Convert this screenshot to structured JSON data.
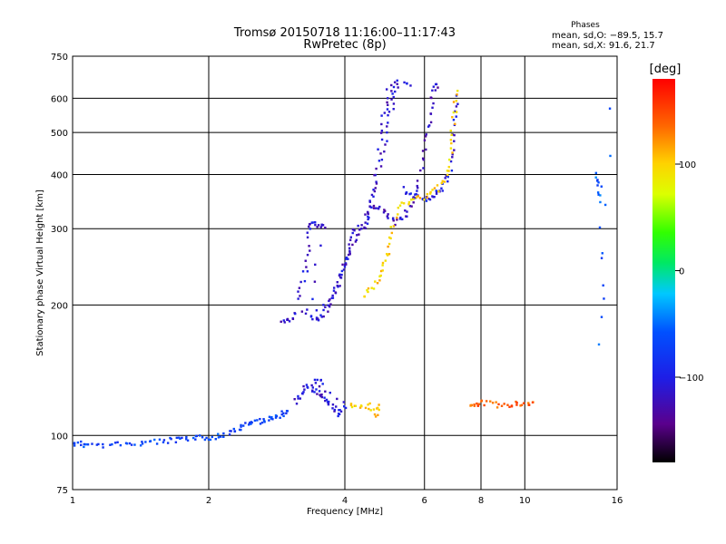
{
  "chart_data": {
    "type": "scatter",
    "title": "Tromsø 20150718 11:16:00–11:17:43",
    "subtitle": "RwPretec (8p)",
    "xlabel": "Frequency [MHz]",
    "ylabel": "Stationary phase Virtual Height [km]",
    "x_scale": "log",
    "y_scale": "log",
    "xlim": [
      1,
      16
    ],
    "ylim": [
      75,
      750
    ],
    "x_ticks": [
      1,
      2,
      4,
      6,
      8,
      10,
      16
    ],
    "x_tick_labels": [
      "1",
      "2",
      "4",
      "6",
      "8",
      "10",
      "16"
    ],
    "y_ticks": [
      75,
      100,
      200,
      300,
      400,
      500,
      600,
      750
    ],
    "y_tick_labels": [
      "75",
      "100",
      "200",
      "300",
      "400",
      "500",
      "600",
      "750"
    ],
    "grid": true,
    "phase_panel": {
      "title": "Phases",
      "line_o": "mean, sd,O: −89.5, 15.7",
      "line_x": "mean, sd,X:  91.6, 21.7"
    },
    "colorbar": {
      "label": "[deg]",
      "range": [
        -180,
        180
      ],
      "ticks": [
        100,
        0,
        -100
      ],
      "tick_labels": [
        "100",
        "0",
        "−100"
      ]
    },
    "traces": [
      {
        "phase": -70,
        "points": [
          [
            1.0,
            96
          ],
          [
            1.05,
            95.5
          ],
          [
            1.1,
            95
          ],
          [
            1.2,
            95
          ],
          [
            1.3,
            95.5
          ],
          [
            1.4,
            96
          ],
          [
            1.5,
            96.5
          ],
          [
            1.6,
            97
          ],
          [
            1.7,
            97.5
          ],
          [
            1.8,
            98
          ],
          [
            1.9,
            98.5
          ],
          [
            2.0,
            99
          ],
          [
            2.1,
            99.5
          ],
          [
            2.2,
            101
          ],
          [
            2.3,
            103
          ],
          [
            2.4,
            105
          ],
          [
            2.5,
            107
          ],
          [
            2.6,
            108
          ],
          [
            2.7,
            109
          ],
          [
            2.8,
            110
          ],
          [
            2.9,
            112
          ],
          [
            3.0,
            113
          ]
        ]
      },
      {
        "phase": -110,
        "points": [
          [
            3.15,
            205
          ],
          [
            3.25,
            230
          ],
          [
            3.3,
            260
          ],
          [
            3.35,
            300
          ],
          [
            3.4,
            310
          ],
          [
            3.5,
            305
          ],
          [
            3.6,
            300
          ],
          [
            3.3,
            190
          ],
          [
            3.5,
            185
          ],
          [
            3.6,
            190
          ],
          [
            3.7,
            200
          ],
          [
            3.8,
            215
          ],
          [
            3.9,
            230
          ],
          [
            4.0,
            250
          ],
          [
            4.1,
            270
          ],
          [
            4.2,
            295
          ],
          [
            4.4,
            310
          ],
          [
            4.6,
            360
          ],
          [
            4.8,
            430
          ],
          [
            5.0,
            520
          ],
          [
            5.1,
            580
          ],
          [
            5.2,
            630
          ]
        ]
      },
      {
        "phase": -115,
        "points": [
          [
            2.9,
            182
          ],
          [
            3.0,
            185
          ],
          [
            3.1,
            190
          ],
          [
            3.7,
            200
          ],
          [
            3.9,
            230
          ],
          [
            4.0,
            250
          ],
          [
            4.2,
            280
          ],
          [
            4.4,
            300
          ],
          [
            4.5,
            320
          ],
          [
            4.6,
            345
          ],
          [
            4.7,
            400
          ],
          [
            4.8,
            480
          ],
          [
            4.9,
            560
          ],
          [
            5.0,
            620
          ],
          [
            5.2,
            650
          ],
          [
            5.6,
            650
          ]
        ]
      },
      {
        "phase": -120,
        "points": [
          [
            4.6,
            330
          ],
          [
            4.8,
            340
          ],
          [
            5.0,
            320
          ],
          [
            5.2,
            310
          ],
          [
            5.4,
            320
          ],
          [
            5.6,
            340
          ],
          [
            5.8,
            380
          ],
          [
            6.0,
            440
          ],
          [
            6.1,
            500
          ],
          [
            6.2,
            560
          ],
          [
            6.3,
            620
          ],
          [
            6.4,
            650
          ]
        ]
      },
      {
        "phase": -105,
        "points": [
          [
            5.4,
            370
          ],
          [
            5.6,
            360
          ],
          [
            5.8,
            355
          ],
          [
            6.0,
            350
          ],
          [
            6.2,
            355
          ],
          [
            6.4,
            360
          ],
          [
            6.6,
            370
          ],
          [
            6.8,
            400
          ],
          [
            6.9,
            460
          ],
          [
            7.0,
            530
          ],
          [
            7.1,
            600
          ]
        ]
      },
      {
        "phase": 100,
        "points": [
          [
            4.4,
            210
          ],
          [
            4.6,
            220
          ],
          [
            4.8,
            230
          ],
          [
            4.9,
            250
          ],
          [
            5.0,
            270
          ],
          [
            5.1,
            300
          ],
          [
            5.3,
            340
          ],
          [
            5.6,
            350
          ],
          [
            6.0,
            355
          ],
          [
            6.3,
            365
          ],
          [
            6.6,
            380
          ],
          [
            6.8,
            420
          ],
          [
            6.9,
            480
          ],
          [
            7.0,
            550
          ],
          [
            7.1,
            630
          ]
        ]
      },
      {
        "phase": -110,
        "points": [
          [
            3.1,
            120
          ],
          [
            3.2,
            125
          ],
          [
            3.3,
            130
          ],
          [
            3.4,
            128
          ],
          [
            3.5,
            125
          ],
          [
            3.6,
            122
          ],
          [
            3.7,
            118
          ],
          [
            3.8,
            115
          ],
          [
            3.9,
            112
          ],
          [
            4.0,
            118
          ],
          [
            3.4,
            135
          ],
          [
            3.6,
            132
          ]
        ]
      },
      {
        "phase": 100,
        "points": [
          [
            4.1,
            118
          ],
          [
            4.3,
            115
          ],
          [
            4.5,
            117
          ],
          [
            4.7,
            112
          ],
          [
            4.8,
            116
          ]
        ]
      },
      {
        "phase": 140,
        "points": [
          [
            7.6,
            118
          ],
          [
            7.8,
            117
          ],
          [
            8.0,
            119
          ],
          [
            8.5,
            118
          ],
          [
            9.0,
            117
          ],
          [
            9.5,
            118
          ],
          [
            10.0,
            117
          ],
          [
            10.5,
            118
          ]
        ]
      },
      {
        "phase": -60,
        "points": [
          [
            14.5,
            400
          ],
          [
            14.6,
            380
          ],
          [
            14.8,
            350
          ],
          [
            14.7,
            160
          ],
          [
            15.5,
            560
          ]
        ]
      }
    ]
  }
}
